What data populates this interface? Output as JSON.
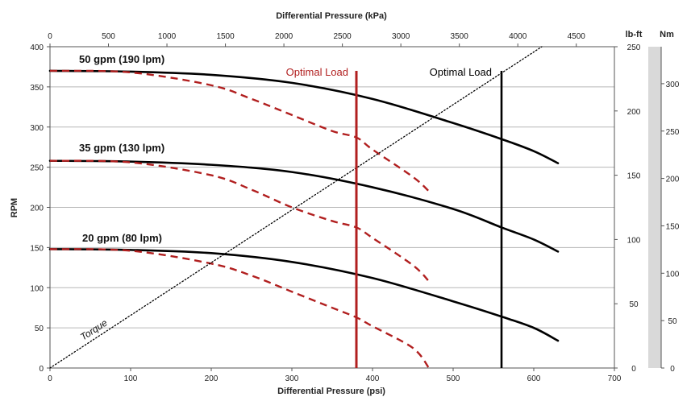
{
  "chart_data": {
    "type": "line",
    "xlabel": "Differential Pressure (psi)",
    "x2label": "Differential Pressure (kPa)",
    "ylabel": "RPM",
    "y2label": "lb-ft",
    "y3label": "Nm",
    "xlim": [
      0,
      700
    ],
    "x2lim": [
      0,
      4826
    ],
    "ylim": [
      0,
      400
    ],
    "y2lim": [
      0,
      250
    ],
    "y3lim": [
      0,
      339
    ],
    "x_ticks": [
      0,
      100,
      200,
      300,
      400,
      500,
      600,
      700
    ],
    "x2_ticks": [
      0,
      500,
      1000,
      1500,
      2000,
      2500,
      3000,
      3500,
      4000,
      4500
    ],
    "y_ticks": [
      0,
      50,
      100,
      150,
      200,
      250,
      300,
      350,
      400
    ],
    "y2_ticks": [
      0,
      50,
      100,
      150,
      200,
      250
    ],
    "y3_ticks": [
      0,
      50,
      100,
      150,
      200,
      250,
      300
    ],
    "grid": "horizontal",
    "series": [
      {
        "name": "50 gpm (190 lpm)",
        "style": "solid",
        "color": "#000000",
        "x": [
          0,
          100,
          200,
          300,
          400,
          500,
          560,
          600,
          630
        ],
        "y": [
          370,
          369,
          365,
          355,
          335,
          305,
          285,
          270,
          255
        ]
      },
      {
        "name": "35 gpm (130 lpm)",
        "style": "solid",
        "color": "#000000",
        "x": [
          0,
          100,
          200,
          300,
          400,
          500,
          560,
          600,
          630
        ],
        "y": [
          258,
          257,
          253,
          244,
          225,
          198,
          175,
          160,
          145
        ]
      },
      {
        "name": "20 gpm (80 lpm)",
        "style": "solid",
        "color": "#000000",
        "x": [
          0,
          100,
          200,
          300,
          400,
          500,
          560,
          600,
          630
        ],
        "y": [
          148,
          147,
          143,
          132,
          112,
          83,
          64,
          50,
          34
        ]
      },
      {
        "name": "",
        "style": "dashed",
        "color": "#b11f1f",
        "x": [
          0,
          100,
          200,
          250,
          300,
          350,
          380,
          400,
          450,
          470
        ],
        "y": [
          370,
          368,
          352,
          335,
          315,
          295,
          287,
          272,
          238,
          220
        ]
      },
      {
        "name": "",
        "style": "dashed",
        "color": "#b11f1f",
        "x": [
          0,
          100,
          200,
          250,
          300,
          350,
          380,
          400,
          450,
          470
        ],
        "y": [
          258,
          256,
          240,
          222,
          200,
          183,
          175,
          162,
          128,
          108
        ]
      },
      {
        "name": "",
        "style": "dashed",
        "color": "#b11f1f",
        "x": [
          0,
          100,
          200,
          250,
          300,
          350,
          380,
          400,
          450,
          470
        ],
        "y": [
          148,
          146,
          130,
          115,
          95,
          75,
          63,
          52,
          25,
          0
        ]
      },
      {
        "name": "Torque",
        "style": "dotted",
        "color": "#000000",
        "x": [
          0,
          610
        ],
        "y": [
          0,
          400
        ]
      }
    ],
    "annotations": [
      {
        "text": "Optimal Load",
        "color": "#b11f1f",
        "x": 380
      },
      {
        "text": "Optimal Load",
        "color": "#000000",
        "x": 560
      }
    ]
  },
  "colors": {
    "optimal_red": "#b11f1f",
    "optimal_black": "#000000",
    "grid": "#b7b7b7",
    "nm_band": "#d9d9d9"
  }
}
